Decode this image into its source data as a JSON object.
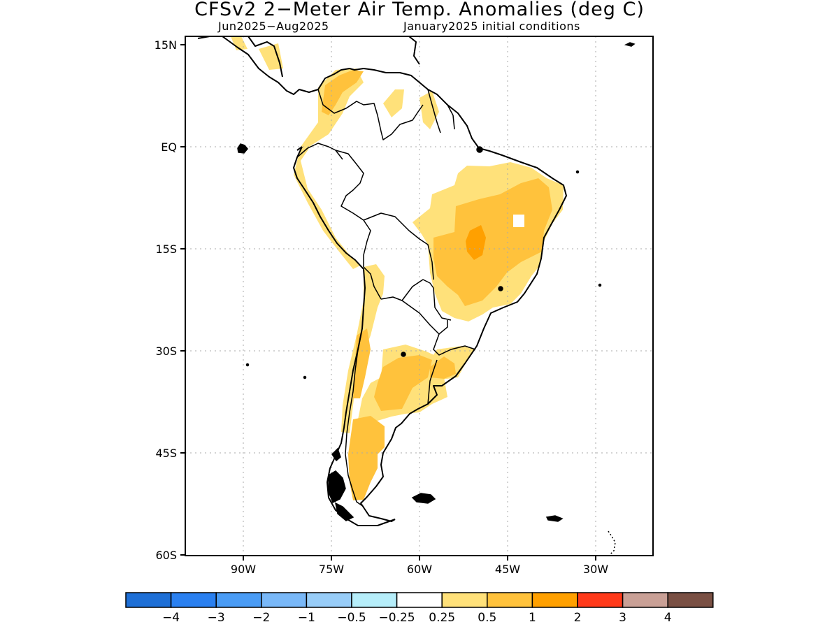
{
  "title": "CFSv2 2−Meter Air Temp. Anomalies (deg C)",
  "subtitle_left": "Jun2025−Aug2025",
  "subtitle_right": "January2025 initial conditions",
  "lat_labels": [
    "15N",
    "EQ",
    "15S",
    "30S",
    "45S",
    "60S"
  ],
  "lon_labels": [
    "90W",
    "75W",
    "60W",
    "45W",
    "30W"
  ],
  "colorbar": {
    "colors": [
      "#1e6fd6",
      "#2a80f0",
      "#4a9cf5",
      "#79b8f8",
      "#98cdf8",
      "#b6eefa",
      "#ffffff",
      "#ffe17a",
      "#ffc23c",
      "#ffa000",
      "#ff3a1a",
      "#c9a096",
      "#7a5044"
    ],
    "labels": [
      "−4",
      "−3",
      "−2",
      "−1",
      "−0.5",
      "−0.25",
      "0.25",
      "0.5",
      "1",
      "2",
      "3",
      "4"
    ]
  }
}
